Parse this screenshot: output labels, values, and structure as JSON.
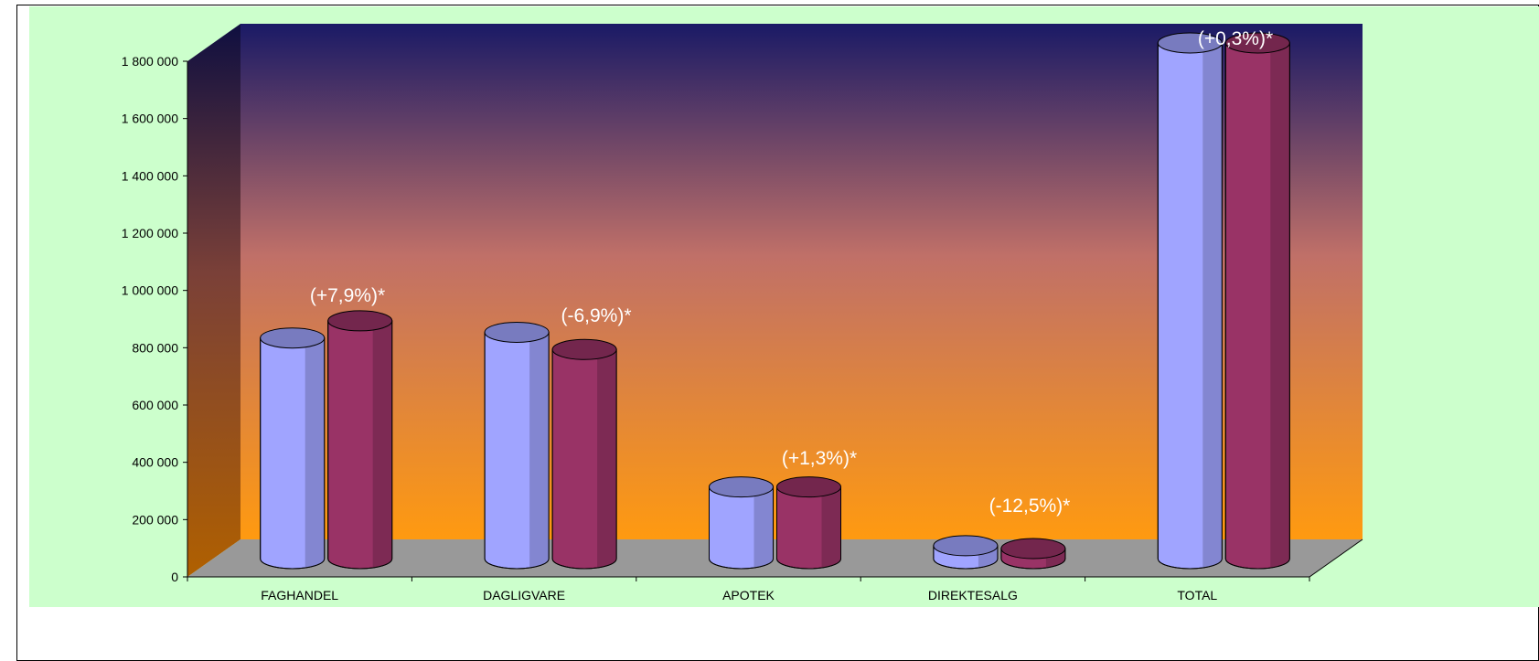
{
  "chart_data": {
    "type": "bar",
    "style": "3d-cylinder",
    "categories": [
      "FAGHANDEL",
      "DAGLIGVARE",
      "APOTEK",
      "DIREKTESALG",
      "TOTAL"
    ],
    "series": [
      {
        "values": [
          770000,
          790000,
          250000,
          45000,
          1800000
        ],
        "color": "#a0a4ff"
      },
      {
        "values": [
          830000,
          730000,
          250000,
          35000,
          1800000
        ],
        "color": "#993366"
      }
    ],
    "annotations": [
      "(+7,9%)*",
      "(-6,9%)*",
      "(+1,3%)*",
      "(-12,5%)*",
      "(+0,3%)*"
    ],
    "ylim": [
      0,
      1800000
    ],
    "yticks": [
      0,
      200000,
      400000,
      600000,
      800000,
      1000000,
      1200000,
      1400000,
      1600000,
      1800000
    ],
    "ytick_labels": [
      "0",
      "200 000",
      "400 000",
      "600 000",
      "800 000",
      "1 000 000",
      "1 200 000",
      "1 400 000",
      "1 600 000",
      "1 800 000"
    ],
    "title": "",
    "xlabel": "",
    "ylabel": "",
    "grid": false,
    "legend": "none",
    "colors": {
      "chart_area": "#ccffcc",
      "back_wall_top": "#1a1a66",
      "back_wall_mid": "#c87068",
      "back_wall_bottom": "#ff9900",
      "floor": "#999999",
      "annotation_text": "#ffffff"
    }
  }
}
